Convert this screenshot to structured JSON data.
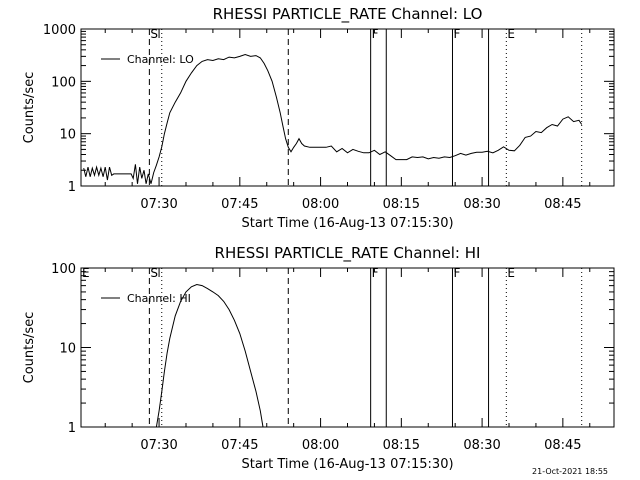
{
  "footer": {
    "timestamp": "21-Oct-2021 18:55"
  },
  "chart_data": [
    {
      "type": "line",
      "title": "RHESSI PARTICLE_RATE Channel: LO",
      "xlabel": "Start Time (16-Aug-13 07:15:30)",
      "ylabel": "Counts/sec",
      "y_scale": "log",
      "ylim": [
        1,
        1000
      ],
      "xlim_minutes_of_hour7": [
        15.5,
        74.5
      ],
      "x_ticks": [
        {
          "label": "07:30",
          "minute": 30
        },
        {
          "label": "07:45",
          "minute": 45
        },
        {
          "label": "08:00",
          "minute": 60
        },
        {
          "label": "08:15",
          "minute": 75
        },
        {
          "label": "08:30",
          "minute": 90
        },
        {
          "label": "08:45",
          "minute": 105
        }
      ],
      "y_ticks": [
        {
          "label": "1",
          "value": 1
        },
        {
          "label": "10",
          "value": 10
        },
        {
          "label": "100",
          "value": 100
        },
        {
          "label": "1000",
          "value": 1000
        }
      ],
      "legend": {
        "label": "Channel: LO",
        "position": "top-left"
      },
      "flags": [
        {
          "label": "S",
          "minute": 28.2,
          "style": "dashed"
        },
        {
          "label": "",
          "minute": 30.5,
          "style": "dotted"
        },
        {
          "label": "",
          "minute": 54.0,
          "style": "dashed"
        },
        {
          "label": "F",
          "minute": 69.3,
          "style": "solid"
        },
        {
          "label": "",
          "minute": 72.2,
          "style": "solid"
        },
        {
          "label": "F",
          "minute": 84.5,
          "style": "solid"
        },
        {
          "label": "",
          "minute": 91.2,
          "style": "solid"
        },
        {
          "label": "E",
          "minute": 94.5,
          "style": "dotted"
        },
        {
          "label": "",
          "minute": 108.5,
          "style": "dotted"
        }
      ],
      "series": [
        {
          "points": [
            [
              16.0,
              2.2
            ],
            [
              16.4,
              1.5
            ],
            [
              16.8,
              2.3
            ],
            [
              17.2,
              1.5
            ],
            [
              17.6,
              2.2
            ],
            [
              18.0,
              1.6
            ],
            [
              18.4,
              2.3
            ],
            [
              18.8,
              1.6
            ],
            [
              19.2,
              2.2
            ],
            [
              19.6,
              1.5
            ],
            [
              20.0,
              2.3
            ],
            [
              20.4,
              1.3
            ],
            [
              20.8,
              2.3
            ],
            [
              21.2,
              1.6
            ],
            [
              21.6,
              1.7
            ],
            [
              22.0,
              1.7
            ],
            [
              22.4,
              1.7
            ],
            [
              22.8,
              1.7
            ],
            [
              23.2,
              1.7
            ],
            [
              23.6,
              1.7
            ],
            [
              24.0,
              1.7
            ],
            [
              24.4,
              1.7
            ],
            [
              24.8,
              1.7
            ],
            [
              25.2,
              1.4
            ],
            [
              25.6,
              2.6
            ],
            [
              26.0,
              1.1
            ],
            [
              26.4,
              2.3
            ],
            [
              26.8,
              1.4
            ],
            [
              27.2,
              2.0
            ],
            [
              27.6,
              1.1
            ],
            [
              28.0,
              1.7
            ],
            [
              28.5,
              1.1
            ],
            [
              29.0,
              1.8
            ],
            [
              29.5,
              2.5
            ],
            [
              30.0,
              3.6
            ],
            [
              30.5,
              5.6
            ],
            [
              31.0,
              10
            ],
            [
              31.5,
              16
            ],
            [
              32.0,
              25
            ],
            [
              33.0,
              40
            ],
            [
              34.0,
              60
            ],
            [
              35.0,
              100
            ],
            [
              36.0,
              145
            ],
            [
              37.0,
              200
            ],
            [
              38.0,
              240
            ],
            [
              39.0,
              260
            ],
            [
              40.0,
              250
            ],
            [
              41.0,
              270
            ],
            [
              42.0,
              260
            ],
            [
              43.0,
              290
            ],
            [
              44.0,
              280
            ],
            [
              45.0,
              300
            ],
            [
              46.0,
              325
            ],
            [
              47.0,
              300
            ],
            [
              48.0,
              310
            ],
            [
              48.8,
              280
            ],
            [
              49.5,
              220
            ],
            [
              50.2,
              160
            ],
            [
              51.0,
              100
            ],
            [
              51.8,
              50
            ],
            [
              52.5,
              25
            ],
            [
              53.0,
              14
            ],
            [
              53.5,
              8
            ],
            [
              54.0,
              5.5
            ],
            [
              54.5,
              4.5
            ],
            [
              55.0,
              5.5
            ],
            [
              55.5,
              6.5
            ],
            [
              56.0,
              8.0
            ],
            [
              56.5,
              6.5
            ],
            [
              57.0,
              5.8
            ],
            [
              58.0,
              5.5
            ],
            [
              59.0,
              5.5
            ],
            [
              60.0,
              5.5
            ],
            [
              61.0,
              5.5
            ],
            [
              62.0,
              5.8
            ],
            [
              63.0,
              4.5
            ],
            [
              64.0,
              5.2
            ],
            [
              65.0,
              4.3
            ],
            [
              66.0,
              5.0
            ],
            [
              67.0,
              4.6
            ],
            [
              68.0,
              4.3
            ],
            [
              69.0,
              4.3
            ],
            [
              70.0,
              4.8
            ],
            [
              71.0,
              4.0
            ],
            [
              72.0,
              4.5
            ],
            [
              73.0,
              3.8
            ],
            [
              74.0,
              3.2
            ],
            [
              75.0,
              3.2
            ],
            [
              76.0,
              3.2
            ],
            [
              77.0,
              3.6
            ],
            [
              78.0,
              3.5
            ],
            [
              79.0,
              3.6
            ],
            [
              80.0,
              3.3
            ],
            [
              81.0,
              3.5
            ],
            [
              82.0,
              3.4
            ],
            [
              83.0,
              3.6
            ],
            [
              84.0,
              3.5
            ],
            [
              85.0,
              3.8
            ],
            [
              86.0,
              4.2
            ],
            [
              87.0,
              3.9
            ],
            [
              88.0,
              4.2
            ],
            [
              89.0,
              4.4
            ],
            [
              90.0,
              4.4
            ],
            [
              91.0,
              4.6
            ],
            [
              92.0,
              4.3
            ],
            [
              93.0,
              4.8
            ],
            [
              94.0,
              5.6
            ],
            [
              95.0,
              4.8
            ],
            [
              96.0,
              4.7
            ],
            [
              97.0,
              6.0
            ],
            [
              98.0,
              8.5
            ],
            [
              99.0,
              9.0
            ],
            [
              100.0,
              11
            ],
            [
              101.0,
              10.5
            ],
            [
              102.0,
              13
            ],
            [
              103.0,
              15
            ],
            [
              104.0,
              14
            ],
            [
              105.0,
              19
            ],
            [
              106.0,
              21
            ],
            [
              107.0,
              17
            ],
            [
              108.0,
              18
            ],
            [
              108.5,
              15
            ]
          ]
        }
      ]
    },
    {
      "type": "line",
      "title": "RHESSI PARTICLE_RATE Channel: HI",
      "xlabel": "Start Time (16-Aug-13 07:15:30)",
      "ylabel": "Counts/sec",
      "y_scale": "log",
      "ylim": [
        1,
        100
      ],
      "x_ticks": [
        {
          "label": "07:30",
          "minute": 30
        },
        {
          "label": "07:45",
          "minute": 45
        },
        {
          "label": "08:00",
          "minute": 60
        },
        {
          "label": "08:15",
          "minute": 75
        },
        {
          "label": "08:30",
          "minute": 90
        },
        {
          "label": "08:45",
          "minute": 105
        }
      ],
      "y_ticks": [
        {
          "label": "1",
          "value": 1
        },
        {
          "label": "10",
          "value": 10
        },
        {
          "label": "100",
          "value": 100
        }
      ],
      "legend": {
        "label": "Channel: HI",
        "position": "top-left"
      },
      "flags": [
        {
          "label": "E",
          "minute": 15.5,
          "style": "none"
        },
        {
          "label": "S",
          "minute": 28.2,
          "style": "dashed"
        },
        {
          "label": "",
          "minute": 30.5,
          "style": "dotted"
        },
        {
          "label": "",
          "minute": 54.0,
          "style": "dashed"
        },
        {
          "label": "F",
          "minute": 69.3,
          "style": "solid"
        },
        {
          "label": "",
          "minute": 72.2,
          "style": "solid"
        },
        {
          "label": "F",
          "minute": 84.5,
          "style": "solid"
        },
        {
          "label": "",
          "minute": 91.2,
          "style": "solid"
        },
        {
          "label": "E",
          "minute": 94.5,
          "style": "dotted"
        },
        {
          "label": "",
          "minute": 108.5,
          "style": "dotted"
        }
      ],
      "series": [
        {
          "points": [
            [
              29.5,
              1.0
            ],
            [
              30.0,
              1.6
            ],
            [
              30.5,
              2.8
            ],
            [
              31.0,
              5.0
            ],
            [
              31.5,
              8.5
            ],
            [
              32.0,
              13
            ],
            [
              33.0,
              25
            ],
            [
              34.0,
              38
            ],
            [
              35.0,
              50
            ],
            [
              36.0,
              58
            ],
            [
              37.0,
              62
            ],
            [
              38.0,
              60
            ],
            [
              39.0,
              55
            ],
            [
              40.0,
              50
            ],
            [
              41.0,
              45
            ],
            [
              42.0,
              38
            ],
            [
              43.0,
              30
            ],
            [
              44.0,
              22
            ],
            [
              45.0,
              15
            ],
            [
              46.0,
              9
            ],
            [
              47.0,
              5
            ],
            [
              48.0,
              2.8
            ],
            [
              48.8,
              1.6
            ],
            [
              49.3,
              1.0
            ]
          ]
        }
      ]
    }
  ]
}
